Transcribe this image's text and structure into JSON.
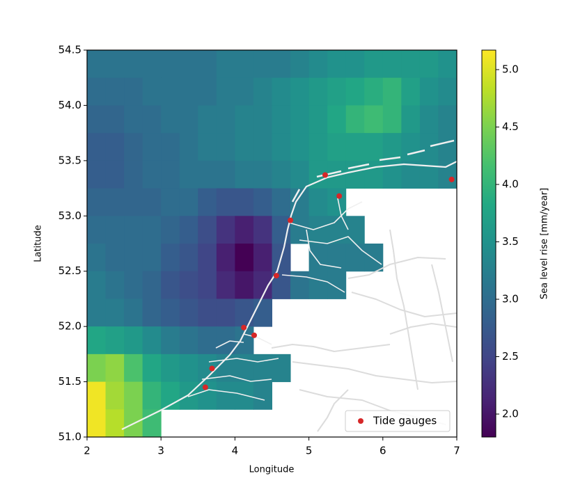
{
  "chart_data": {
    "type": "heatmap",
    "xlabel": "Longitude",
    "ylabel": "Latitude",
    "xlim": [
      2,
      7
    ],
    "ylim": [
      51.0,
      54.5
    ],
    "xticks": [
      2,
      3,
      4,
      5,
      6,
      7
    ],
    "yticks": [
      {
        "value": 51.0,
        "label": "51.0"
      },
      {
        "value": 51.5,
        "label": "51.5"
      },
      {
        "value": 52.0,
        "label": "52.0"
      },
      {
        "value": 52.5,
        "label": "52.5"
      },
      {
        "value": 53.0,
        "label": "53.0"
      },
      {
        "value": 53.5,
        "label": "53.5"
      },
      {
        "value": 54.0,
        "label": "54.0"
      },
      {
        "value": 54.5,
        "label": "54.5"
      }
    ],
    "colormap": "viridis",
    "clim": [
      1.8,
      5.17
    ],
    "cticks": [
      {
        "value": 2.0,
        "label": "2.0"
      },
      {
        "value": 2.5,
        "label": "2.5"
      },
      {
        "value": 3.0,
        "label": "3.0"
      },
      {
        "value": 3.5,
        "label": "3.5"
      },
      {
        "value": 4.0,
        "label": "4.0"
      },
      {
        "value": 4.5,
        "label": "4.5"
      },
      {
        "value": 5.0,
        "label": "5.0"
      }
    ],
    "colorbar_label": "Sea level rise [mm/year]",
    "z": [
      [
        3.1,
        3.1,
        3.1,
        3.1,
        3.1,
        3.1,
        3.1,
        3.2,
        3.2,
        3.2,
        3.2,
        3.3,
        3.4,
        3.5,
        3.5,
        3.6,
        3.6,
        3.6,
        3.6,
        3.5
      ],
      [
        3.0,
        3.0,
        3.0,
        3.1,
        3.1,
        3.1,
        3.1,
        3.2,
        3.2,
        3.3,
        3.4,
        3.5,
        3.6,
        3.7,
        3.8,
        3.9,
        4.0,
        3.7,
        3.5,
        3.4
      ],
      [
        2.9,
        2.9,
        3.0,
        3.0,
        3.1,
        3.1,
        3.2,
        3.2,
        3.3,
        3.3,
        3.4,
        3.5,
        3.6,
        3.8,
        4.0,
        4.1,
        4.0,
        3.6,
        3.4,
        3.3
      ],
      [
        2.8,
        2.8,
        2.9,
        3.0,
        3.0,
        3.1,
        3.2,
        3.2,
        3.3,
        3.3,
        3.4,
        3.5,
        3.6,
        3.7,
        3.7,
        3.7,
        3.6,
        3.5,
        3.4,
        3.3
      ],
      [
        2.8,
        2.8,
        2.9,
        3.0,
        3.0,
        3.1,
        3.1,
        3.1,
        3.2,
        3.2,
        3.3,
        3.4,
        3.6,
        3.6,
        3.6,
        3.6,
        3.5,
        3.4,
        3.4,
        3.3
      ],
      [
        2.9,
        2.9,
        2.9,
        2.9,
        3.0,
        3.0,
        2.8,
        2.7,
        2.7,
        2.8,
        3.0,
        3.2,
        3.4,
        3.5,
        null,
        null,
        null,
        null,
        null,
        null
      ],
      [
        3.0,
        3.0,
        3.0,
        3.0,
        2.9,
        2.8,
        2.6,
        2.3,
        2.1,
        2.3,
        2.8,
        3.2,
        3.3,
        3.3,
        3.3,
        null,
        null,
        null,
        null,
        null
      ],
      [
        3.1,
        3.0,
        3.0,
        3.0,
        2.8,
        2.7,
        2.5,
        2.1,
        1.8,
        2.1,
        2.7,
        null,
        3.2,
        3.2,
        3.2,
        3.2,
        null,
        null,
        null,
        null
      ],
      [
        3.2,
        3.1,
        3.0,
        2.9,
        2.7,
        2.6,
        2.5,
        2.2,
        2.0,
        2.2,
        2.7,
        3.1,
        3.2,
        3.2,
        null,
        null,
        null,
        null,
        null,
        null
      ],
      [
        3.2,
        3.2,
        3.1,
        2.9,
        2.8,
        2.7,
        2.6,
        2.6,
        2.7,
        2.8,
        null,
        null,
        null,
        null,
        null,
        null,
        null,
        null,
        null,
        null
      ],
      [
        3.8,
        3.7,
        3.6,
        3.4,
        3.2,
        3.1,
        3.0,
        3.0,
        3.1,
        null,
        null,
        null,
        null,
        null,
        null,
        null,
        null,
        null,
        null,
        null
      ],
      [
        4.5,
        4.6,
        4.2,
        3.8,
        3.6,
        3.5,
        3.4,
        3.3,
        3.3,
        3.3,
        3.3,
        null,
        null,
        null,
        null,
        null,
        null,
        null,
        null,
        null
      ],
      [
        5.1,
        4.7,
        4.5,
        4.0,
        3.8,
        3.6,
        3.5,
        3.4,
        3.4,
        3.3,
        null,
        null,
        null,
        null,
        null,
        null,
        null,
        null,
        null,
        null
      ],
      [
        5.1,
        4.8,
        4.5,
        4.1,
        null,
        null,
        null,
        null,
        null,
        null,
        null,
        null,
        null,
        null,
        null,
        null,
        null,
        null,
        null,
        null
      ]
    ],
    "series": [
      {
        "name": "Tide gauges",
        "type": "scatter",
        "color": "#d62728",
        "x": [
          5.22,
          5.41,
          6.93,
          4.75,
          4.56,
          4.12,
          4.26,
          3.69,
          3.6
        ],
        "y": [
          53.37,
          53.18,
          53.33,
          52.96,
          52.46,
          51.99,
          51.92,
          51.62,
          51.45
        ]
      }
    ],
    "legend": "lower right"
  }
}
